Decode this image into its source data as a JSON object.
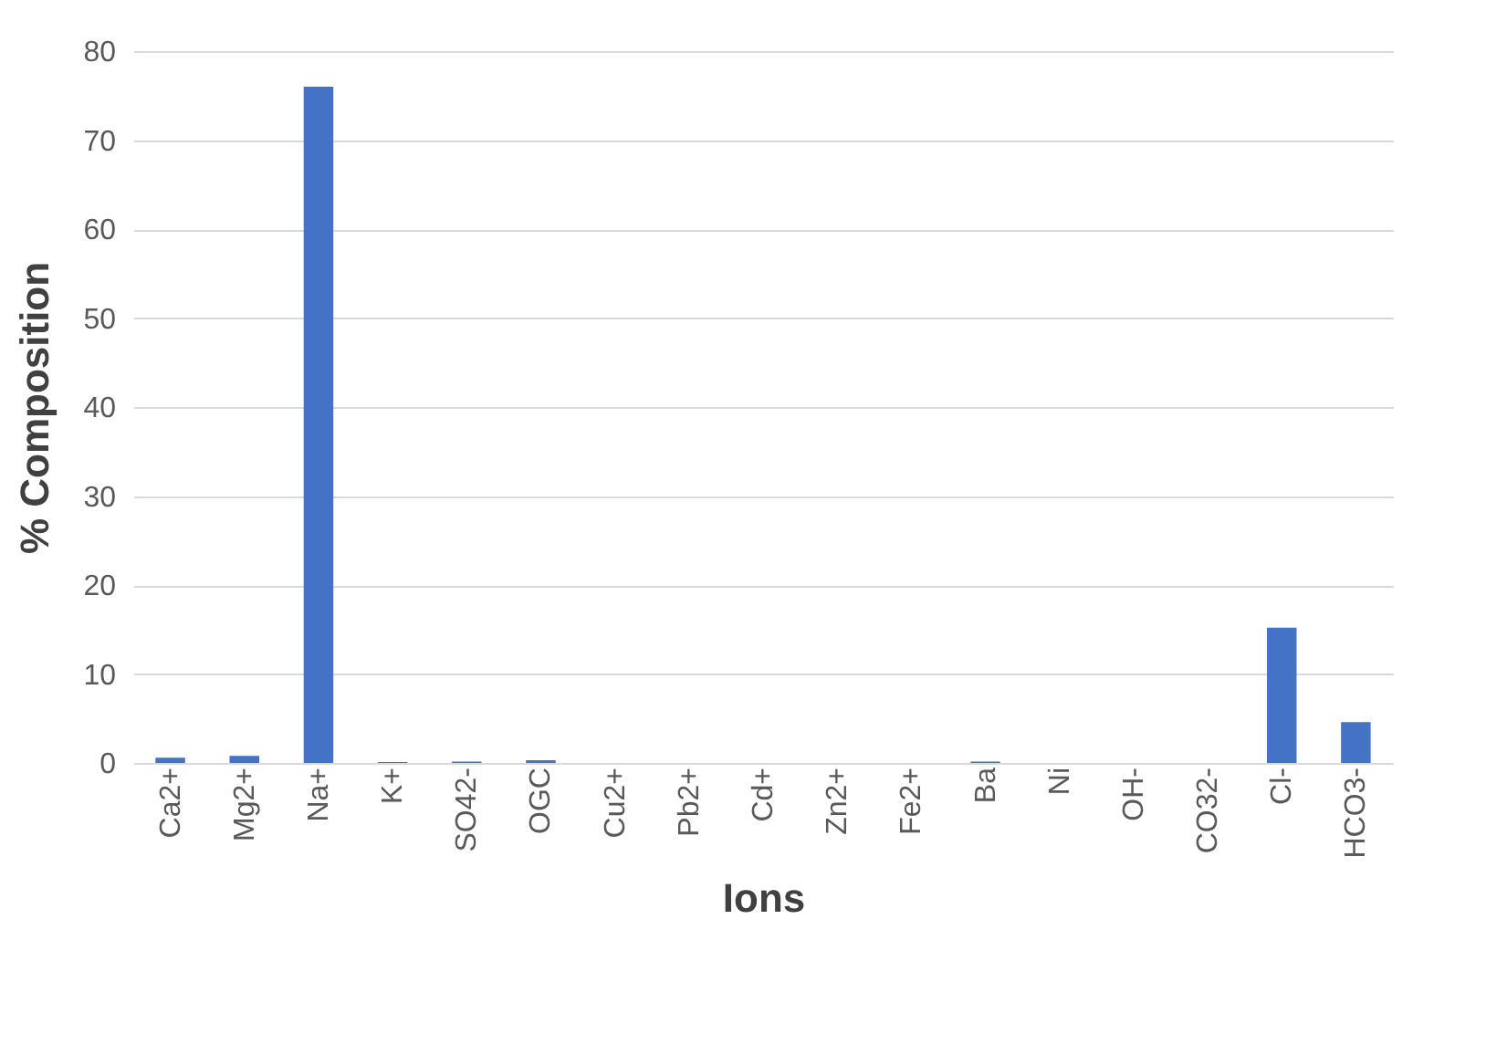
{
  "chart_data": {
    "type": "bar",
    "xlabel": "Ions",
    "ylabel": "% Composition",
    "categories": [
      "Ca2+",
      "Mg2+",
      "Na+",
      "K+",
      "SO42-",
      "OGC",
      "Cu2+",
      "Pb2+",
      "Cd+",
      "Zn2+",
      "Fe2+",
      "Ba",
      "Ni",
      "OH-",
      "CO32-",
      "Cl-",
      "HCO3-"
    ],
    "values": [
      0.6,
      0.8,
      76,
      0.1,
      0.15,
      0.3,
      0,
      0,
      0,
      0,
      0,
      0.15,
      0,
      0,
      0,
      15.2,
      4.6
    ],
    "color": "#4472c4",
    "ylim": [
      0,
      80
    ],
    "yticks": [
      0,
      10,
      20,
      30,
      40,
      50,
      60,
      70,
      80
    ],
    "grid": "y"
  }
}
